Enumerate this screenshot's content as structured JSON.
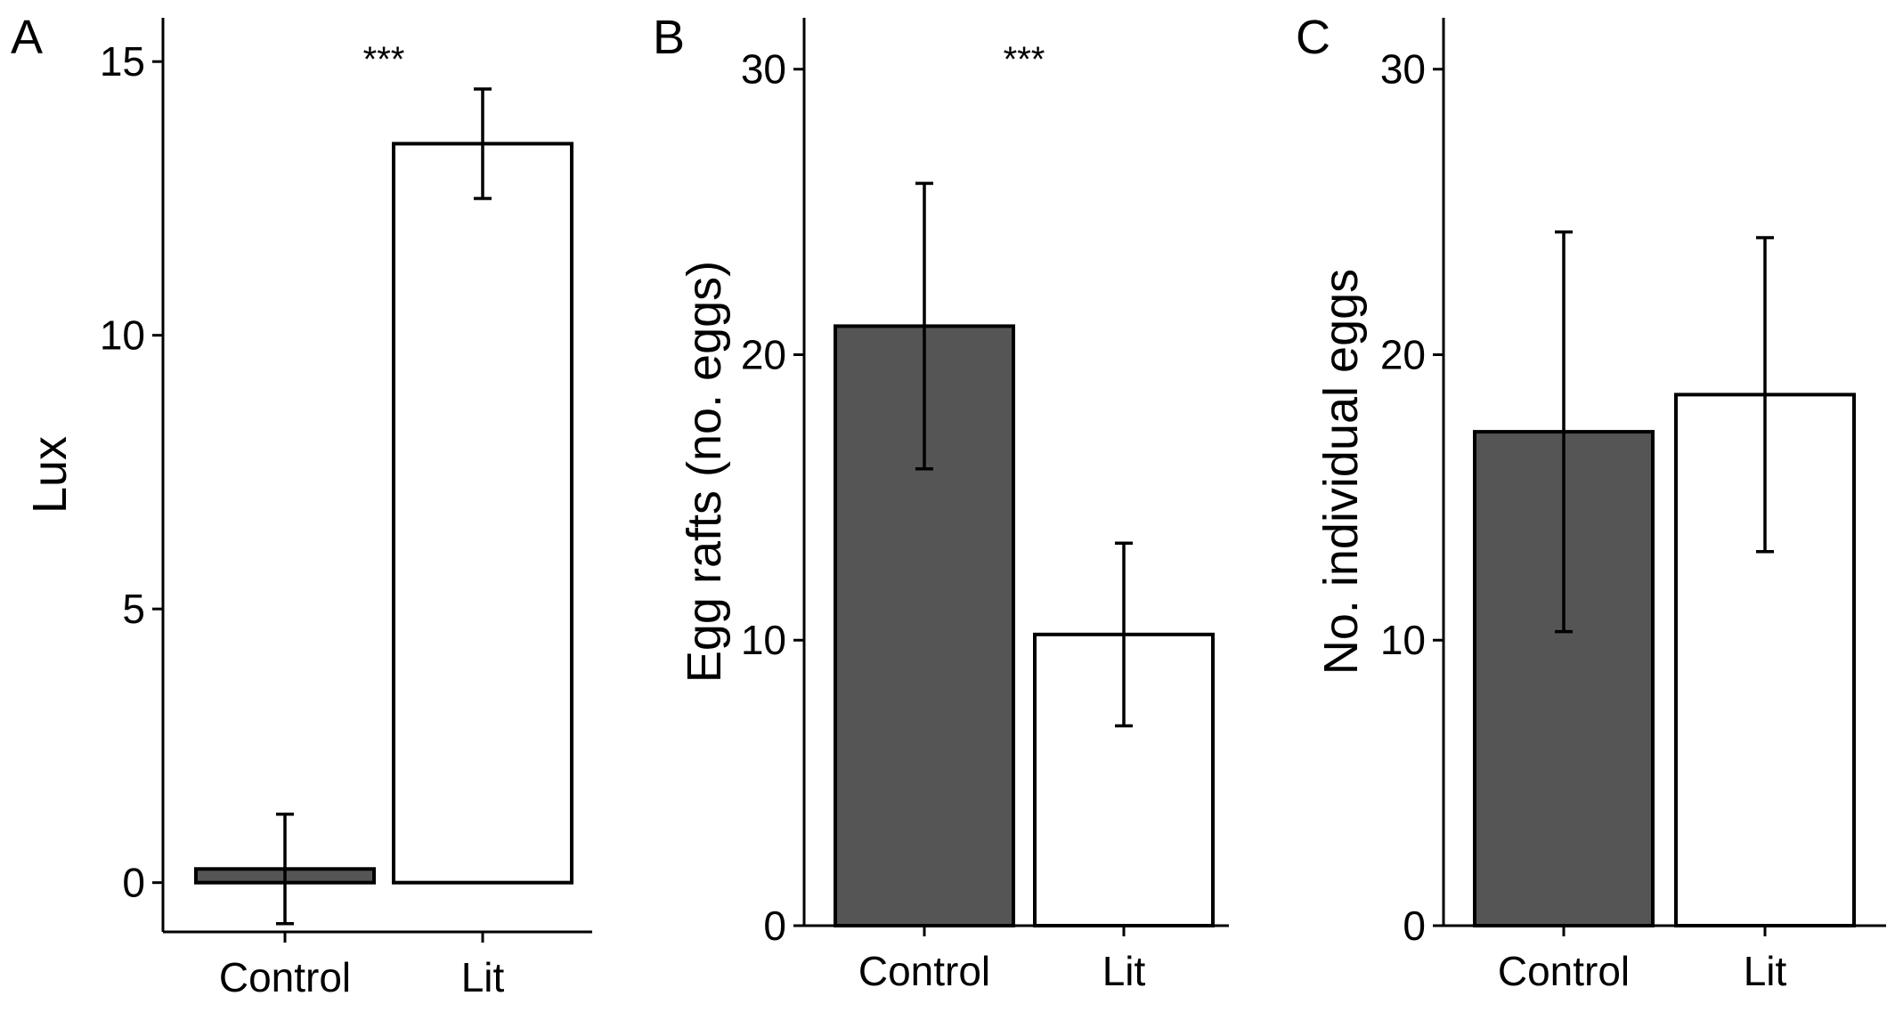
{
  "chart_data": [
    {
      "panel": "A",
      "type": "bar",
      "categories": [
        "Control",
        "Lit"
      ],
      "values": [
        0.25,
        13.5
      ],
      "error": [
        1.0,
        1.0
      ],
      "ylabel": "Lux",
      "ylim": [
        -0.9,
        15.8
      ],
      "yticks": [
        0,
        5,
        10,
        15
      ],
      "significance": "***",
      "bar_colors": [
        "#555555",
        "#ffffff"
      ]
    },
    {
      "panel": "B",
      "type": "bar",
      "categories": [
        "Control",
        "Lit"
      ],
      "values": [
        21.0,
        10.2
      ],
      "error": [
        5.0,
        3.2
      ],
      "ylabel": "Egg rafts (no. eggs)",
      "ylim": [
        0,
        31.8
      ],
      "yticks": [
        0,
        10,
        20,
        30
      ],
      "significance": "***",
      "bar_colors": [
        "#555555",
        "#ffffff"
      ]
    },
    {
      "panel": "C",
      "type": "bar",
      "categories": [
        "Control",
        "Lit"
      ],
      "values": [
        17.3,
        18.6
      ],
      "error": [
        7.0,
        5.5
      ],
      "ylabel": "No. individual eggs",
      "ylim": [
        0,
        31.8
      ],
      "yticks": [
        0,
        10,
        20,
        30
      ],
      "significance": "",
      "bar_colors": [
        "#555555",
        "#ffffff"
      ]
    }
  ]
}
